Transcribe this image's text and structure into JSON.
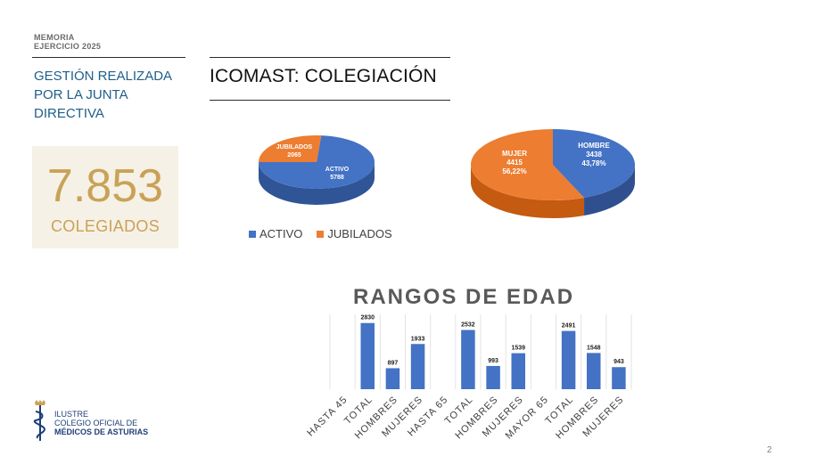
{
  "header": {
    "memoria_line1": "MEMORIA",
    "memoria_line2": "EJERCICIO 2025",
    "section_title": "GESTIÓN REALIZADA POR LA JUNTA DIRECTIVA",
    "slide_title": "ICOMAST: COLEGIACIÓN"
  },
  "stat": {
    "number": "7.853",
    "label": "COLEGIADOS"
  },
  "colors": {
    "blue": "#4472c4",
    "orange": "#ed7d31",
    "gold": "#c9a257",
    "teal": "#1f5e8a"
  },
  "logo": {
    "line1": "ILUSTRE",
    "line2": "COLEGIO OFICIAL DE",
    "line3": "MÉDICOS DE ASTURIAS",
    "icon": "caduceus-crown-icon"
  },
  "page_number": "2",
  "chart_data": [
    {
      "type": "pie",
      "title": "",
      "slices": [
        {
          "label": "ACTIVO",
          "value": 5788,
          "color": "#4472c4"
        },
        {
          "label": "JUBILADOS",
          "value": 2065,
          "color": "#ed7d31"
        }
      ],
      "legend": [
        "ACTIVO",
        "JUBILADOS"
      ],
      "legend_position": "bottom"
    },
    {
      "type": "pie",
      "title": "",
      "slices": [
        {
          "label": "HOMBRE",
          "value": 3438,
          "percent": "43,78%",
          "color": "#4472c4"
        },
        {
          "label": "MUJER",
          "value": 4415,
          "percent": "56,22%",
          "color": "#ed7d31"
        }
      ]
    },
    {
      "type": "bar",
      "title": "RANGOS DE EDAD",
      "categories": [
        "HASTA 45",
        "TOTAL",
        "HOMBRES",
        "MUJERES",
        "HASTA 65",
        "TOTAL",
        "HOMBRES",
        "MUJERES",
        "MAYOR 65",
        "TOTAL",
        "HOMBRES",
        "MUJERES"
      ],
      "values": [
        null,
        2830,
        897,
        1933,
        null,
        2532,
        993,
        1539,
        null,
        2491,
        1548,
        943
      ],
      "color": "#4472c4",
      "ylim": [
        0,
        3200
      ],
      "grid": false
    }
  ]
}
